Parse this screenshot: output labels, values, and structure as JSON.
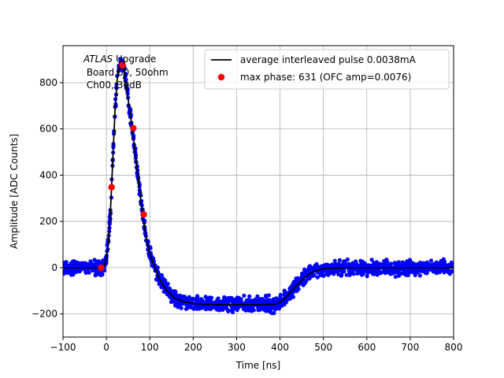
{
  "chart_data": {
    "type": "line",
    "title": "",
    "xlabel": "Time [ns]",
    "ylabel": "Amplitude [ADC Counts]",
    "xlim": [
      -100,
      800
    ],
    "ylim": [
      -300,
      960
    ],
    "xticks": [
      -100,
      0,
      100,
      200,
      300,
      400,
      500,
      600,
      700,
      800
    ],
    "yticks": [
      -200,
      0,
      200,
      400,
      600,
      800
    ],
    "grid": true,
    "legend_position": "top-right",
    "annotation": {
      "line1_italic": "ATLAS",
      "line1_rest": " Upgrade",
      "line2": " Board 60, 50ohm",
      "line3": " Ch00, 30dB"
    },
    "series": [
      {
        "name": "average interleaved pulse 0.0038mA",
        "style": "line",
        "color": "#000000",
        "x": [
          -100,
          -20,
          -10,
          -5,
          0,
          5,
          10,
          15,
          20,
          25,
          30,
          35,
          40,
          45,
          50,
          55,
          60,
          65,
          70,
          75,
          80,
          85,
          90,
          95,
          100,
          110,
          120,
          130,
          140,
          150,
          160,
          180,
          200,
          220,
          250,
          300,
          350,
          390,
          400,
          410,
          420,
          430,
          440,
          450,
          460,
          470,
          480,
          500,
          520,
          550,
          600,
          700,
          800
        ],
        "y": [
          0,
          0,
          2,
          10,
          40,
          120,
          270,
          480,
          680,
          820,
          880,
          890,
          860,
          800,
          730,
          660,
          600,
          520,
          440,
          360,
          280,
          210,
          150,
          100,
          60,
          10,
          -40,
          -75,
          -100,
          -120,
          -135,
          -148,
          -155,
          -158,
          -160,
          -160,
          -160,
          -158,
          -150,
          -135,
          -115,
          -95,
          -75,
          -55,
          -38,
          -25,
          -15,
          -5,
          -2,
          0,
          0,
          0,
          0
        ]
      },
      {
        "name": "",
        "style": "scatter",
        "color": "#0000ff",
        "noise_band": 25
      },
      {
        "name": "max phase: 631 (OFC amp=0.0076)",
        "style": "scatter",
        "color": "#ff0000",
        "x": [
          -12,
          12,
          37,
          62,
          86
        ],
        "y": [
          0,
          348,
          875,
          603,
          230
        ]
      }
    ]
  }
}
